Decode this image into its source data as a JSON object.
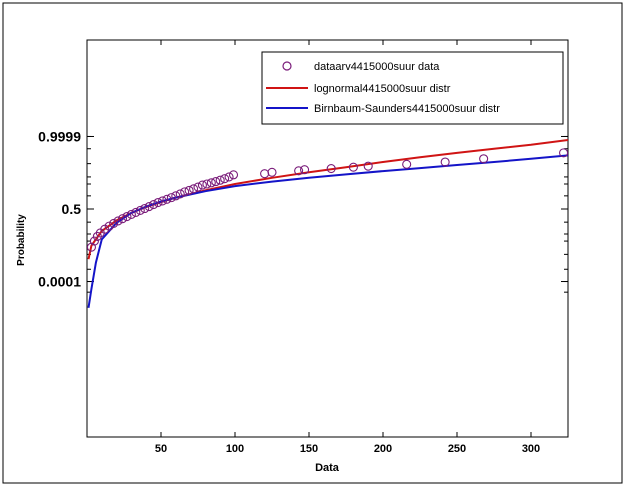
{
  "chart_data": {
    "type": "scatter",
    "title": "",
    "xlabel": "Data",
    "ylabel": "Probability",
    "xlim": [
      0,
      325
    ],
    "x_ticks": [
      50,
      100,
      150,
      200,
      250,
      300
    ],
    "y_ticks": [
      {
        "label": "0.9999",
        "value": 0.9999
      },
      {
        "label": "0.5",
        "value": 0.5
      },
      {
        "label": "0.0001",
        "value": 0.0001
      }
    ],
    "grid": false,
    "legend_position": "top-right",
    "series": [
      {
        "name": "dataarv4415000suur data",
        "kind": "markers",
        "marker": "circle",
        "color": "#7a1c7a",
        "x": [
          3,
          5,
          7,
          9,
          12,
          15,
          18,
          21,
          24,
          27,
          30,
          33,
          36,
          39,
          42,
          45,
          48,
          51,
          54,
          57,
          60,
          63,
          66,
          69,
          72,
          75,
          78,
          81,
          84,
          87,
          90,
          93,
          96,
          99,
          120,
          125,
          143,
          147,
          165,
          180,
          190,
          216,
          242,
          268,
          322
        ],
        "p": [
          0.025,
          0.05,
          0.08,
          0.11,
          0.15,
          0.19,
          0.23,
          0.27,
          0.31,
          0.35,
          0.39,
          0.43,
          0.47,
          0.51,
          0.55,
          0.59,
          0.63,
          0.66,
          0.69,
          0.72,
          0.75,
          0.78,
          0.81,
          0.83,
          0.85,
          0.87,
          0.89,
          0.9,
          0.91,
          0.92,
          0.93,
          0.94,
          0.95,
          0.96,
          0.965,
          0.97,
          0.975,
          0.978,
          0.981,
          0.984,
          0.986,
          0.989,
          0.992,
          0.995,
          0.998
        ]
      },
      {
        "name": "lognormal4415000suur distr",
        "kind": "line",
        "color": "#d01414",
        "x": [
          1,
          3,
          10,
          20,
          30,
          40,
          50,
          60,
          80,
          100,
          125,
          150,
          175,
          200,
          225,
          250,
          275,
          300,
          325
        ],
        "p": [
          0.005,
          0.03,
          0.13,
          0.28,
          0.42,
          0.54,
          0.64,
          0.72,
          0.83,
          0.9,
          0.945,
          0.97,
          0.984,
          0.992,
          0.996,
          0.998,
          0.999,
          0.9995,
          0.9998
        ]
      },
      {
        "name": "Birnbaum-Saunders4415000suur distr",
        "kind": "line",
        "color": "#1414c8",
        "x": [
          1,
          3,
          6,
          10,
          20,
          30,
          40,
          50,
          60,
          80,
          100,
          125,
          150,
          175,
          200,
          225,
          250,
          275,
          300,
          325
        ],
        "p": [
          2e-07,
          2e-05,
          0.003,
          0.06,
          0.24,
          0.42,
          0.55,
          0.65,
          0.72,
          0.82,
          0.88,
          0.92,
          0.945,
          0.962,
          0.974,
          0.982,
          0.988,
          0.992,
          0.995,
          0.997
        ]
      }
    ]
  }
}
